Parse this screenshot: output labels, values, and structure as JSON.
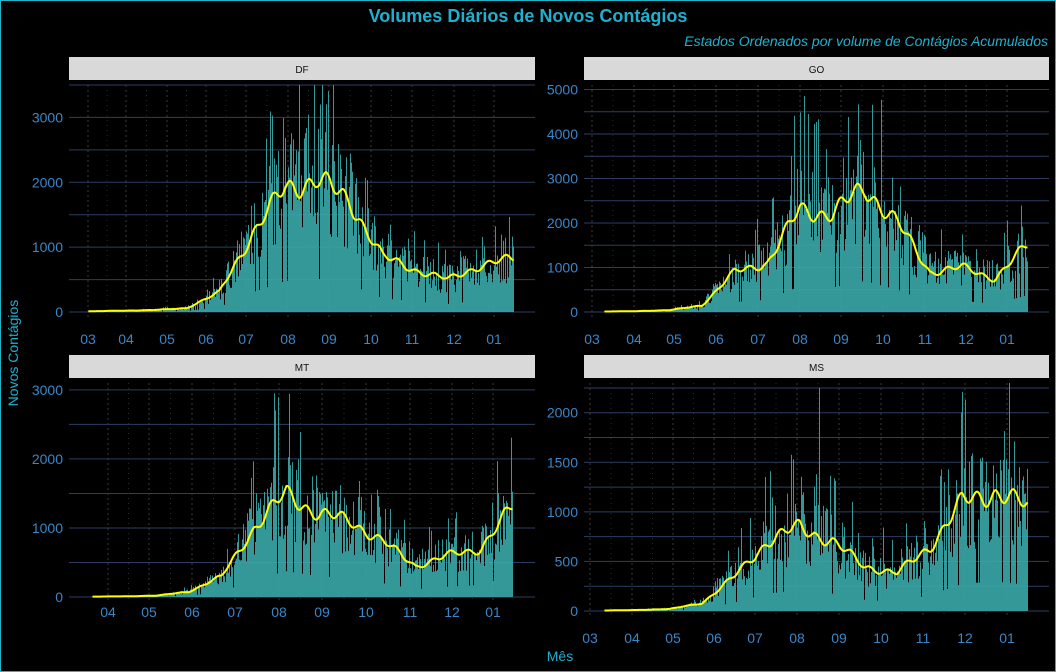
{
  "title": "Volumes Diários de Novos Contágios",
  "subtitle": "Estados Ordenados por volume de Contágios Acumulados",
  "ylabel": "Novos Contágios",
  "xlabel": "Mês",
  "colors": {
    "background": "#000000",
    "bars": "#3aa8a8",
    "moving_average": "#ffff00",
    "strip": "#d9d9d9",
    "grid": "#2c3f63",
    "text": "#1fb0d0",
    "ticks": "#3a86c8"
  },
  "chart_data": [
    {
      "type": "bar",
      "facet": "DF",
      "x_ticks": [
        "03",
        "04",
        "05",
        "06",
        "07",
        "08",
        "09",
        "10",
        "11",
        "12",
        "01"
      ],
      "ylim": [
        0,
        3500
      ],
      "y_ticks": [
        0,
        1000,
        2000,
        3000
      ],
      "series": [
        {
          "name": "",
          "values": [
            10,
            20,
            30,
            60,
            300,
            1200,
            1900,
            2050,
            1700,
            850,
            650,
            500,
            720,
            820
          ]
        },
        {
          "name": "",
          "values": [
            10,
            20,
            30,
            60,
            300,
            1200,
            1900,
            2050,
            1700,
            850,
            650,
            500,
            720,
            820
          ]
        }
      ],
      "peak_value": 3200
    },
    {
      "type": "bar",
      "facet": "GO",
      "x_ticks": [
        "03",
        "04",
        "05",
        "06",
        "07",
        "08",
        "09",
        "10",
        "11",
        "12",
        "01"
      ],
      "ylim": [
        0,
        5100
      ],
      "y_ticks": [
        0,
        1000,
        2000,
        3000,
        4000,
        5000
      ],
      "series": [
        {
          "name": "",
          "values": [
            10,
            20,
            40,
            150,
            900,
            1100,
            2300,
            2200,
            2800,
            2000,
            900,
            1000,
            750,
            1500
          ]
        },
        {
          "name": "",
          "values": [
            10,
            20,
            40,
            150,
            900,
            1100,
            2300,
            2200,
            2800,
            2000,
            900,
            1000,
            750,
            1500
          ]
        }
      ],
      "peak_value": 4850
    },
    {
      "type": "bar",
      "facet": "MT",
      "x_ticks": [
        "04",
        "05",
        "06",
        "07",
        "08",
        "09",
        "10",
        "11",
        "12",
        "01"
      ],
      "ylim": [
        0,
        3100
      ],
      "y_ticks": [
        0,
        1000,
        2000,
        3000
      ],
      "series": [
        {
          "name": "",
          "values": [
            5,
            10,
            20,
            80,
            300,
            1000,
            1500,
            1200,
            1100,
            800,
            450,
            600,
            700,
            1300
          ]
        },
        {
          "name": "",
          "values": [
            5,
            10,
            20,
            80,
            300,
            1000,
            1500,
            1200,
            1100,
            800,
            450,
            600,
            700,
            1300
          ]
        }
      ],
      "peak_value": 2950
    },
    {
      "type": "bar",
      "facet": "MS",
      "x_ticks": [
        "03",
        "04",
        "05",
        "06",
        "07",
        "08",
        "09",
        "10",
        "11",
        "12",
        "01"
      ],
      "ylim": [
        0,
        2300
      ],
      "y_ticks": [
        0,
        500,
        1000,
        1500,
        2000
      ],
      "series": [
        {
          "name": "",
          "values": [
            5,
            10,
            20,
            80,
            350,
            700,
            850,
            700,
            450,
            380,
            650,
            1100,
            1200,
            1050
          ]
        },
        {
          "name": "",
          "values": [
            5,
            10,
            20,
            80,
            350,
            700,
            850,
            700,
            450,
            380,
            650,
            1100,
            1200,
            1050
          ]
        }
      ],
      "peak_value": 2250
    }
  ]
}
